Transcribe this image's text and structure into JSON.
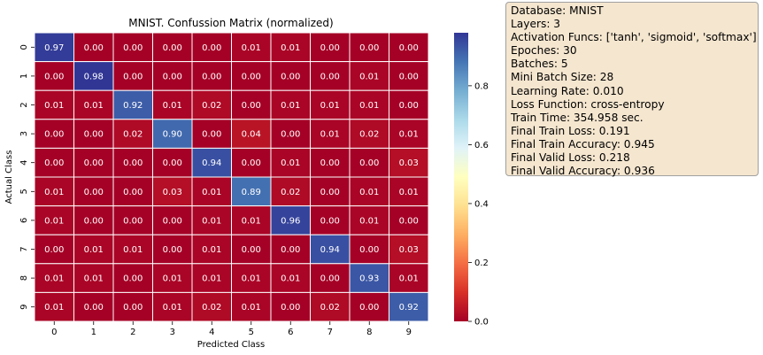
{
  "chart_data": {
    "type": "heatmap",
    "title": "MNIST. Confussion Matrix (normalized)",
    "xlabel": "Predicted Class",
    "ylabel": "Actual Class",
    "x_categories": [
      "0",
      "1",
      "2",
      "3",
      "4",
      "5",
      "6",
      "7",
      "8",
      "9"
    ],
    "y_categories": [
      "0",
      "1",
      "2",
      "3",
      "4",
      "5",
      "6",
      "7",
      "8",
      "9"
    ],
    "values": [
      [
        0.97,
        0.0,
        0.0,
        0.0,
        0.0,
        0.01,
        0.01,
        0.0,
        0.0,
        0.0
      ],
      [
        0.0,
        0.98,
        0.0,
        0.0,
        0.0,
        0.0,
        0.0,
        0.0,
        0.01,
        0.0
      ],
      [
        0.01,
        0.01,
        0.92,
        0.01,
        0.02,
        0.0,
        0.01,
        0.01,
        0.01,
        0.0
      ],
      [
        0.0,
        0.0,
        0.02,
        0.9,
        0.0,
        0.04,
        0.0,
        0.01,
        0.02,
        0.01
      ],
      [
        0.0,
        0.0,
        0.0,
        0.0,
        0.94,
        0.0,
        0.01,
        0.0,
        0.0,
        0.03
      ],
      [
        0.01,
        0.0,
        0.0,
        0.03,
        0.01,
        0.89,
        0.02,
        0.0,
        0.01,
        0.01
      ],
      [
        0.01,
        0.0,
        0.0,
        0.0,
        0.01,
        0.01,
        0.96,
        0.0,
        0.01,
        0.0
      ],
      [
        0.0,
        0.01,
        0.01,
        0.0,
        0.01,
        0.0,
        0.0,
        0.94,
        0.0,
        0.03
      ],
      [
        0.01,
        0.01,
        0.0,
        0.01,
        0.01,
        0.01,
        0.01,
        0.0,
        0.93,
        0.01
      ],
      [
        0.01,
        0.0,
        0.0,
        0.01,
        0.02,
        0.01,
        0.0,
        0.02,
        0.0,
        0.92
      ]
    ],
    "colormap": "RdYlBu",
    "value_range": [
      0,
      0.98
    ],
    "colorbar_ticks": [
      0.0,
      0.2,
      0.4,
      0.6,
      0.8
    ],
    "colorbar_labels": [
      "0.0",
      "0.2",
      "0.4",
      "0.6",
      "0.8"
    ],
    "grid_line_color": "#ffffff",
    "legend_placement": "right"
  },
  "info": {
    "lines": [
      "Database: MNIST",
      "Layers: 3",
      "Activation Funcs: ['tanh', 'sigmoid', 'softmax']",
      "Epoches: 30",
      "Batches: 5",
      "Mini Batch Size: 28",
      "Learning Rate: 0.010",
      "Loss Function: cross-entropy",
      "Train Time: 354.958 sec.",
      "Final Train Loss: 0.191",
      "Final Train Accuracy: 0.945",
      "Final Valid Loss: 0.218",
      "Final Valid Accuracy: 0.936"
    ],
    "background": "#f5e6cf"
  }
}
